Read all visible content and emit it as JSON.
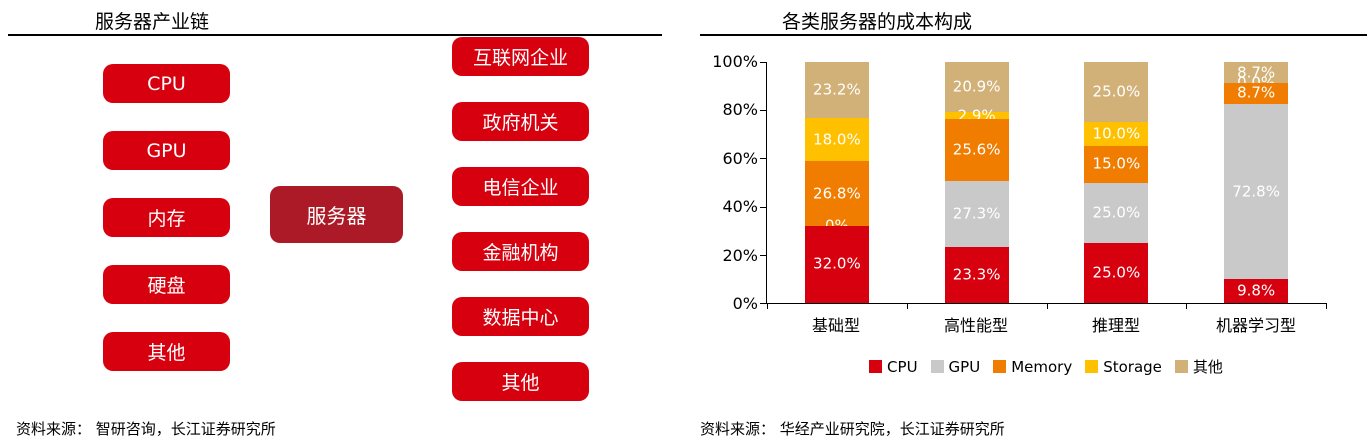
{
  "colors": {
    "primary_red": "#d7000f",
    "dark_red": "#ab1a26",
    "axis": "#000000",
    "bar_label": "#ffffff"
  },
  "left_panel": {
    "title": "服务器产业链",
    "components": [
      "CPU",
      "GPU",
      "内存",
      "硬盘",
      "其他"
    ],
    "center_node": "服务器",
    "customers": [
      "互联网企业",
      "政府机关",
      "电信企业",
      "金融机构",
      "数据中心",
      "其他"
    ],
    "source": "资料来源： 智研咨询，长江证券研究所"
  },
  "right_panel": {
    "title": "各类服务器的成本构成",
    "source": "资料来源： 华经产业研究院，长江证券研究所"
  },
  "chart_data": {
    "type": "bar",
    "subtype": "stacked-100-percent",
    "title": "各类服务器的成本构成",
    "categories": [
      "基础型",
      "高性能型",
      "推理型",
      "机器学习型"
    ],
    "series": [
      {
        "name": "CPU",
        "color": "#d7000f",
        "values": [
          32.0,
          23.3,
          25.0,
          9.8
        ],
        "labels": [
          "32.0%",
          "23.3%",
          "25.0%",
          "9.8%"
        ]
      },
      {
        "name": "GPU",
        "color": "#c9c9c9",
        "values": [
          0.0,
          27.3,
          25.0,
          72.8
        ],
        "labels": [
          "0%",
          "27.3%",
          "25.0%",
          "72.8%"
        ]
      },
      {
        "name": "Memory",
        "color": "#f07d00",
        "values": [
          26.8,
          25.6,
          15.0,
          8.7
        ],
        "labels": [
          "26.8%",
          "25.6%",
          "15.0%",
          "8.7%"
        ]
      },
      {
        "name": "Storage",
        "color": "#ffc000",
        "values": [
          18.0,
          2.9,
          10.0,
          0.0
        ],
        "labels": [
          "18.0%",
          "2.9%",
          "10.0%",
          "0.0%"
        ]
      },
      {
        "name": "其他",
        "color": "#d2b178",
        "values": [
          23.2,
          20.9,
          25.0,
          8.7
        ],
        "labels": [
          "23.2%",
          "20.9%",
          "25.0%",
          "8.7%"
        ]
      }
    ],
    "y_ticks": [
      "100%",
      "80%",
      "60%",
      "40%",
      "20%",
      "0%"
    ],
    "ylim": [
      0,
      100
    ],
    "grid": false,
    "legend_position": "bottom"
  }
}
